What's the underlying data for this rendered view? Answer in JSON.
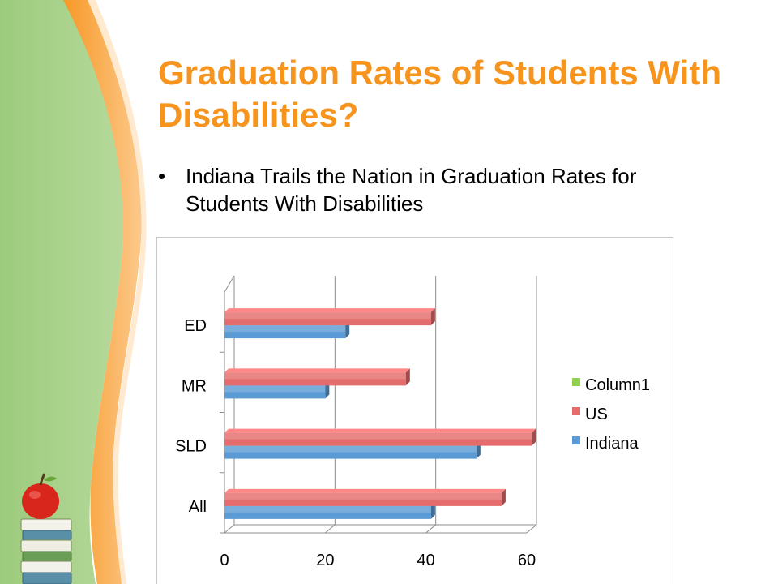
{
  "slide": {
    "title": "Graduation Rates of Students With Disabilities?",
    "bullet": "Indiana Trails the Nation in Graduation Rates for Students With Disabilities",
    "bullet_marker": "•",
    "theme_colors": {
      "title": "#f7941d",
      "green_panel": "#a7cf86",
      "orange_stripe": "#f7941d",
      "light_orange": "#fbd3a6"
    }
  },
  "chart_data": {
    "type": "bar",
    "orientation": "horizontal",
    "style": "3d",
    "categories": [
      "All",
      "SLD",
      "MR",
      "ED"
    ],
    "series": [
      {
        "name": "Indiana",
        "color": "#5b9bd5",
        "values": [
          41,
          50,
          20,
          24
        ]
      },
      {
        "name": "US",
        "color": "#e46c6c",
        "values": [
          55,
          61,
          36,
          41
        ]
      },
      {
        "name": "Column1",
        "color": "#92d050",
        "values": [
          0,
          0,
          0,
          0
        ]
      }
    ],
    "xticks": [
      "0",
      "20",
      "40",
      "60"
    ],
    "xlim": [
      0,
      60
    ],
    "grid": true,
    "legend_position": "right",
    "legend_order": [
      "Column1",
      "US",
      "Indiana"
    ],
    "title": "",
    "xlabel": "",
    "ylabel": ""
  }
}
